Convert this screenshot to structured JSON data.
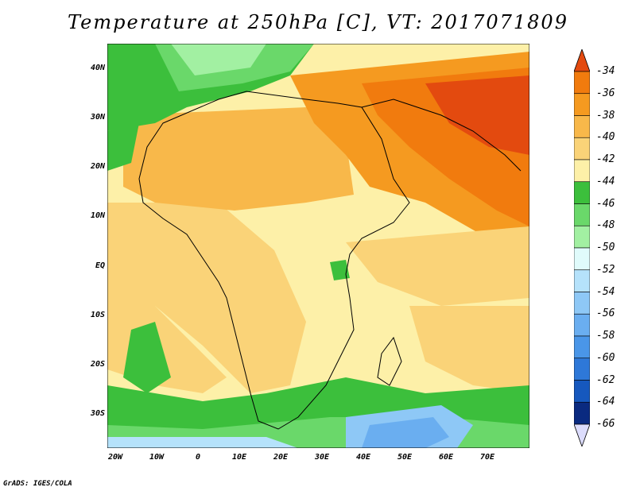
{
  "title": "Temperature at 250hPa [C], VT: 2017071809",
  "footer": "GrADS: IGES/COLA",
  "lat_labels": [
    "40N",
    "30N",
    "20N",
    "10N",
    "EQ",
    "10S",
    "20S",
    "30S"
  ],
  "lon_labels": [
    "20W",
    "10W",
    "0",
    "10E",
    "20E",
    "30E",
    "40E",
    "50E",
    "60E",
    "70E"
  ],
  "colorbar": {
    "labels": [
      "-34",
      "-36",
      "-38",
      "-40",
      "-42",
      "-44",
      "-46",
      "-48",
      "-50",
      "-52",
      "-54",
      "-56",
      "-58",
      "-60",
      "-62",
      "-64",
      "-66"
    ],
    "colors": [
      "#e34a0f",
      "#f17b0e",
      "#f59a20",
      "#f8b84a",
      "#fad378",
      "#fdf0a8",
      "#3cbf3c",
      "#6ad86a",
      "#a2f0a2",
      "#e0fbfb",
      "#b5e2fb",
      "#8ec8f6",
      "#6aaef0",
      "#4a96e8",
      "#2e78d8",
      "#1658be",
      "#0a2a80",
      "#dcdcfc"
    ]
  }
}
